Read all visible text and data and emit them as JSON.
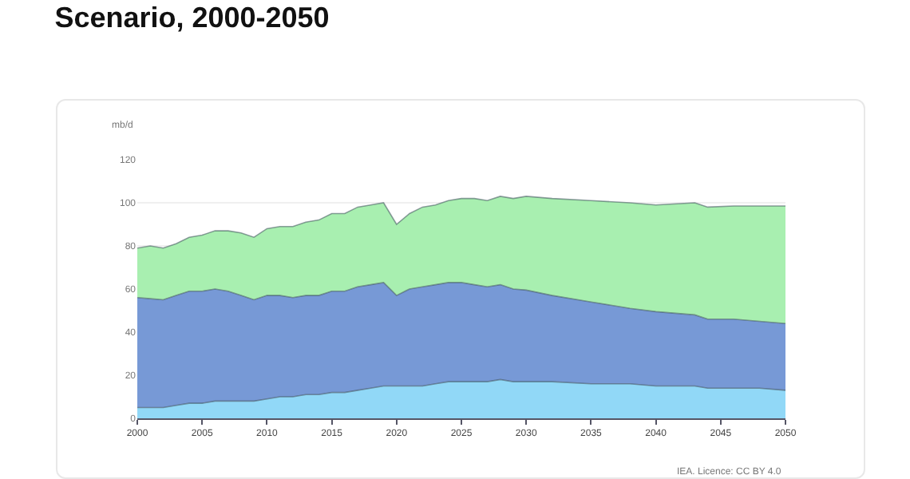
{
  "chart_data": {
    "type": "area",
    "stacked": true,
    "title": "Scenario, 2000-2050",
    "ylabel": "mb/d",
    "annotations": [
      "IEA. Licence: CC BY 4.0"
    ],
    "x": [
      2000,
      2001,
      2002,
      2003,
      2004,
      2005,
      2006,
      2007,
      2008,
      2009,
      2010,
      2011,
      2012,
      2013,
      2014,
      2015,
      2016,
      2017,
      2018,
      2019,
      2020,
      2021,
      2022,
      2023,
      2024,
      2025,
      2026,
      2027,
      2028,
      2029,
      2030,
      2032,
      2035,
      2038,
      2040,
      2043,
      2044,
      2046,
      2048,
      2050
    ],
    "series": [
      {
        "color": "#91d8f7",
        "values": [
          5,
          5,
          5,
          6,
          7,
          7,
          8,
          8,
          8,
          8,
          9,
          10,
          10,
          11,
          11,
          12,
          12,
          13,
          14,
          15,
          15,
          15,
          15,
          16,
          17,
          17,
          17,
          17,
          18,
          17,
          17,
          17,
          16,
          16,
          15,
          15,
          14,
          14,
          14,
          13
        ]
      },
      {
        "color": "#7799d6",
        "values": [
          51,
          50.5,
          50,
          51,
          52,
          52,
          52,
          51,
          49,
          47,
          48,
          47,
          46,
          46,
          46,
          47,
          47,
          48,
          48,
          48,
          42,
          45,
          46,
          46,
          46,
          46,
          45,
          44,
          44,
          43,
          42.5,
          40,
          38,
          35,
          34.5,
          33,
          32,
          32,
          31,
          31
        ]
      },
      {
        "color": "#a8efb0",
        "values": [
          23,
          24.5,
          24,
          24,
          25,
          26,
          27,
          28,
          29,
          29,
          31,
          32,
          33,
          34,
          35,
          36,
          36,
          37,
          37,
          37,
          33,
          35,
          37,
          37,
          38,
          39,
          40,
          40,
          41,
          42,
          43.5,
          45,
          47,
          49,
          49.5,
          52,
          52,
          52.5,
          53.5,
          54.5
        ]
      }
    ],
    "xlim": [
      2000,
      2050
    ],
    "xticks": [
      2000,
      2005,
      2010,
      2015,
      2020,
      2025,
      2030,
      2035,
      2040,
      2045,
      2050
    ],
    "ylim": [
      0,
      120
    ],
    "yticks": [
      0,
      20,
      40,
      60,
      80,
      100,
      120
    ],
    "grid": "y"
  }
}
